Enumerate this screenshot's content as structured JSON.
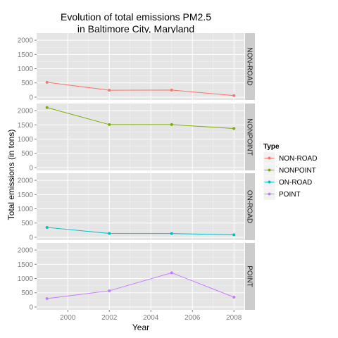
{
  "chart_data": {
    "type": "line",
    "title_line1": "Evolution of total emissions PM2.5",
    "title_line2": "in Baltimore City, Maryland",
    "xlabel": "Year",
    "ylabel": "Total emissions (in tons)",
    "xlim": [
      1998.5,
      2008.5
    ],
    "ylim": [
      -100,
      2250
    ],
    "x_ticks": [
      2000,
      2002,
      2004,
      2006,
      2008
    ],
    "y_ticks": [
      0,
      500,
      1000,
      1500,
      2000
    ],
    "grid": true,
    "legend_title": "Type",
    "legend_position": "right",
    "x": [
      1999,
      2002,
      2005,
      2008
    ],
    "series": [
      {
        "name": "NON-ROAD",
        "color": "#f8766d",
        "values": [
          522.9,
          241.8,
          248.9,
          55.8
        ]
      },
      {
        "name": "NONPOINT",
        "color": "#7cae00",
        "values": [
          2107.6,
          1509.5,
          1509.5,
          1373.2
        ]
      },
      {
        "name": "ON-ROAD",
        "color": "#00bfc4",
        "values": [
          346.8,
          134.3,
          130.4,
          88.3
        ]
      },
      {
        "name": "POINT",
        "color": "#c77cff",
        "values": [
          296.8,
          569.3,
          1202.5,
          344.98
        ]
      }
    ]
  }
}
